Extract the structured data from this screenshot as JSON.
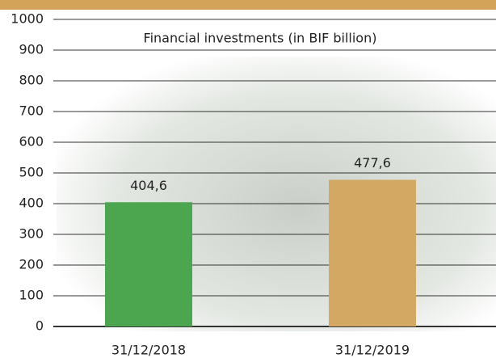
{
  "chart_data": {
    "type": "bar",
    "title": "Financial investments (in BIF billion)",
    "categories": [
      "31/12/2018",
      "31/12/2019"
    ],
    "values": [
      404.6,
      477.6
    ],
    "value_labels": [
      "404,6",
      "477,6"
    ],
    "colors": [
      "#4ba64f",
      "#d3a862"
    ],
    "ylim": [
      0,
      1000
    ],
    "yticks": [
      0,
      100,
      200,
      300,
      400,
      500,
      600,
      700,
      800,
      900,
      1000
    ],
    "grid": true
  }
}
